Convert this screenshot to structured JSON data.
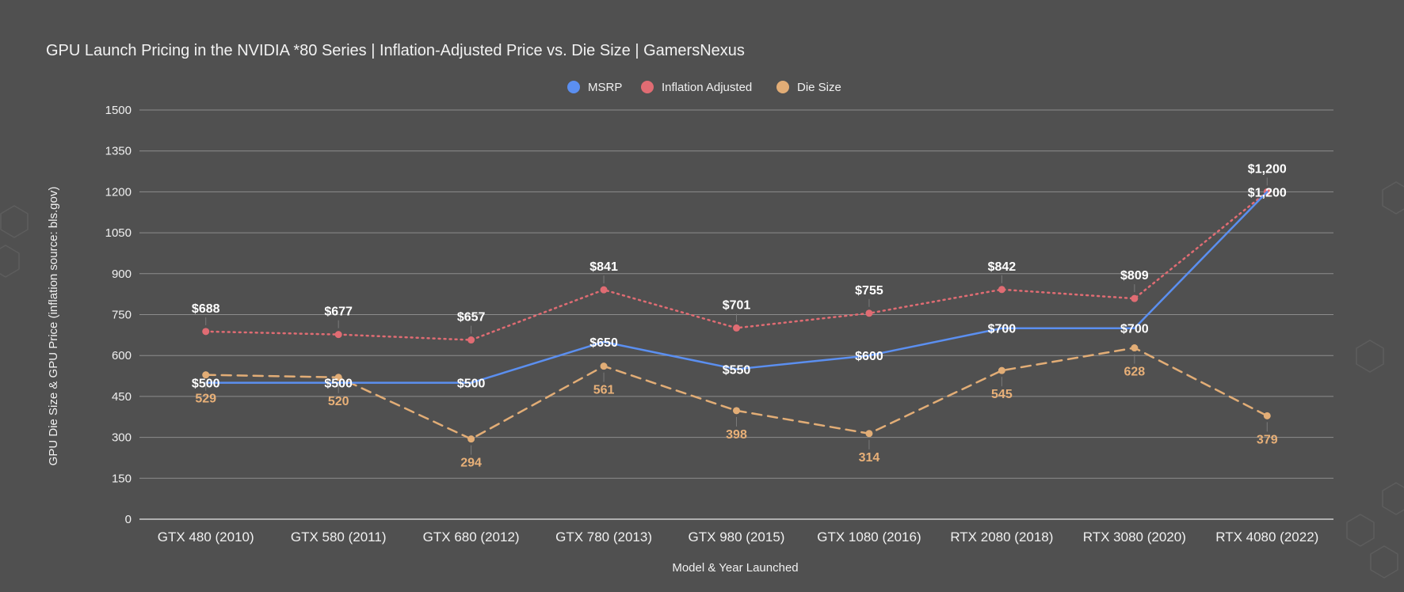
{
  "chart_data": {
    "type": "line",
    "title": "GPU Launch Pricing in the NVIDIA *80 Series | Inflation-Adjusted Price vs. Die Size | GamersNexus",
    "xlabel": "Model & Year Launched",
    "ylabel": "GPU Die Size & GPU Price (inflation source: bls.gov)",
    "ylim": [
      0,
      1500
    ],
    "yticks": [
      "0",
      "150",
      "300",
      "450",
      "600",
      "750",
      "900",
      "1050",
      "1200",
      "1350",
      "1500"
    ],
    "grid": true,
    "legend_position": "top-center",
    "categories": [
      "GTX 480 (2010)",
      "GTX 580 (2011)",
      "GTX 680 (2012)",
      "GTX 780 (2013)",
      "GTX 980 (2015)",
      "GTX 1080 (2016)",
      "RTX 2080 (2018)",
      "RTX 3080 (2020)",
      "RTX 4080 (2022)"
    ],
    "series": [
      {
        "name": "MSRP",
        "color": "#5b8ff0",
        "style": "solid",
        "values": [
          500,
          500,
          500,
          650,
          550,
          600,
          700,
          700,
          1200
        ],
        "labels": [
          "$500",
          "$500",
          "$500",
          "$650",
          "$550",
          "$600",
          "$700",
          "$700",
          "$1,200"
        ]
      },
      {
        "name": "Inflation Adjusted",
        "color": "#e06c73",
        "style": "dotted",
        "values": [
          688,
          677,
          657,
          841,
          701,
          755,
          842,
          809,
          1200
        ],
        "labels": [
          "$688",
          "$677",
          "$657",
          "$841",
          "$701",
          "$755",
          "$842",
          "$809",
          "$1,200"
        ]
      },
      {
        "name": "Die Size",
        "color": "#e2ad76",
        "style": "dashed",
        "values": [
          529,
          520,
          294,
          561,
          398,
          314,
          545,
          628,
          379
        ],
        "labels": [
          "529",
          "520",
          "294",
          "561",
          "398",
          "314",
          "545",
          "628",
          "379"
        ]
      }
    ]
  }
}
